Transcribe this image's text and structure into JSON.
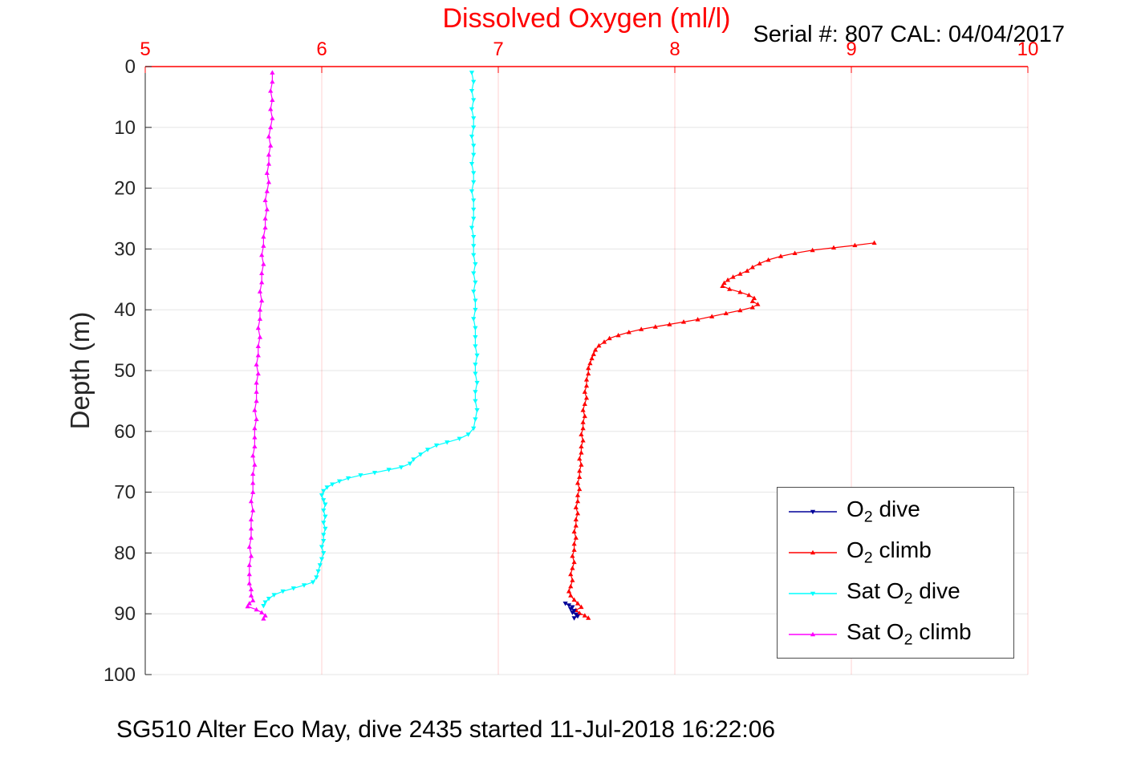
{
  "title": "Dissolved Oxygen (ml/l)",
  "serial_label": "Serial #: 807 CAL: 04/04/2017",
  "caption": "SG510 Alter Eco May, dive 2435 started 11-Jul-2018 16:22:06",
  "ylabel": "Depth (m)",
  "colors": {
    "axis_x": "#ff0000",
    "axis_y": "#262626",
    "grid_x": "rgba(255,0,0,0.18)",
    "grid_y": "rgba(0,0,0,0.10)",
    "o2_dive": "#000099",
    "o2_climb": "#ff0000",
    "sat_o2_dive": "#00ffff",
    "sat_o2_climb": "#ff00ff"
  },
  "chart_data": {
    "type": "line",
    "title": "Dissolved Oxygen (ml/l)",
    "xlabel": "Dissolved Oxygen (ml/l)",
    "ylabel": "Depth (m)",
    "xlim": [
      5,
      10
    ],
    "ylim": [
      0,
      100
    ],
    "x_axis_position": "top",
    "y_axis_reversed": true,
    "grid": true,
    "x_ticks": [
      5,
      6,
      7,
      8,
      9,
      10
    ],
    "y_ticks": [
      0,
      10,
      20,
      30,
      40,
      50,
      60,
      70,
      80,
      90,
      100
    ],
    "legend_position": "right-middle",
    "legend": [
      "O2 dive",
      "O2 climb",
      "Sat O2 dive",
      "Sat O2 climb"
    ],
    "series": [
      {
        "name": "O2 dive",
        "label_pre": "O",
        "label_sub": "2",
        "label_post": " dive",
        "color": "#000099",
        "marker": "v",
        "points": [
          [
            7.38,
            88.3
          ],
          [
            7.4,
            88.6
          ],
          [
            7.42,
            88.9
          ],
          [
            7.41,
            89.2
          ],
          [
            7.43,
            89.5
          ],
          [
            7.42,
            89.8
          ],
          [
            7.44,
            90.1
          ],
          [
            7.45,
            90.4
          ],
          [
            7.43,
            90.7
          ]
        ]
      },
      {
        "name": "O2 climb",
        "label_pre": "O",
        "label_sub": "2",
        "label_post": " climb",
        "color": "#ff0000",
        "marker": "^",
        "points": [
          [
            9.13,
            29.0
          ],
          [
            9.02,
            29.4
          ],
          [
            8.9,
            29.8
          ],
          [
            8.78,
            30.2
          ],
          [
            8.68,
            30.7
          ],
          [
            8.6,
            31.2
          ],
          [
            8.53,
            31.8
          ],
          [
            8.48,
            32.4
          ],
          [
            8.44,
            33.0
          ],
          [
            8.41,
            33.6
          ],
          [
            8.37,
            34.1
          ],
          [
            8.33,
            34.6
          ],
          [
            8.3,
            35.1
          ],
          [
            8.28,
            35.6
          ],
          [
            8.27,
            36.1
          ],
          [
            8.31,
            36.6
          ],
          [
            8.37,
            37.1
          ],
          [
            8.42,
            37.6
          ],
          [
            8.45,
            38.1
          ],
          [
            8.44,
            38.6
          ],
          [
            8.47,
            39.1
          ],
          [
            8.44,
            39.6
          ],
          [
            8.37,
            40.1
          ],
          [
            8.29,
            40.6
          ],
          [
            8.21,
            41.1
          ],
          [
            8.13,
            41.6
          ],
          [
            8.05,
            42.0
          ],
          [
            7.97,
            42.4
          ],
          [
            7.89,
            42.8
          ],
          [
            7.81,
            43.2
          ],
          [
            7.74,
            43.7
          ],
          [
            7.68,
            44.2
          ],
          [
            7.63,
            44.7
          ],
          [
            7.6,
            45.3
          ],
          [
            7.57,
            45.9
          ],
          [
            7.55,
            46.6
          ],
          [
            7.54,
            47.3
          ],
          [
            7.53,
            48.0
          ],
          [
            7.52,
            48.8
          ],
          [
            7.51,
            49.6
          ],
          [
            7.51,
            50.5
          ],
          [
            7.5,
            51.5
          ],
          [
            7.5,
            52.5
          ],
          [
            7.49,
            53.5
          ],
          [
            7.5,
            54.5
          ],
          [
            7.49,
            55.5
          ],
          [
            7.48,
            56.5
          ],
          [
            7.49,
            57.5
          ],
          [
            7.48,
            58.5
          ],
          [
            7.48,
            59.5
          ],
          [
            7.47,
            60.5
          ],
          [
            7.48,
            61.5
          ],
          [
            7.47,
            62.5
          ],
          [
            7.47,
            63.5
          ],
          [
            7.46,
            64.5
          ],
          [
            7.47,
            65.5
          ],
          [
            7.46,
            66.5
          ],
          [
            7.46,
            67.5
          ],
          [
            7.45,
            68.5
          ],
          [
            7.46,
            69.5
          ],
          [
            7.45,
            70.5
          ],
          [
            7.45,
            71.5
          ],
          [
            7.44,
            72.5
          ],
          [
            7.45,
            73.5
          ],
          [
            7.44,
            74.5
          ],
          [
            7.44,
            75.5
          ],
          [
            7.43,
            76.5
          ],
          [
            7.44,
            77.5
          ],
          [
            7.43,
            78.5
          ],
          [
            7.43,
            79.5
          ],
          [
            7.42,
            80.5
          ],
          [
            7.43,
            81.5
          ],
          [
            7.42,
            82.5
          ],
          [
            7.41,
            83.5
          ],
          [
            7.42,
            84.5
          ],
          [
            7.41,
            85.5
          ],
          [
            7.4,
            86.3
          ],
          [
            7.41,
            87.0
          ],
          [
            7.43,
            87.7
          ],
          [
            7.45,
            88.3
          ],
          [
            7.47,
            88.9
          ],
          [
            7.44,
            89.4
          ],
          [
            7.46,
            89.9
          ],
          [
            7.49,
            90.3
          ],
          [
            7.51,
            90.7
          ]
        ]
      },
      {
        "name": "Sat O2 dive",
        "label_pre": "Sat O",
        "label_sub": "2",
        "label_post": " dive",
        "color": "#00ffff",
        "marker": "v",
        "points": [
          [
            6.85,
            1.0
          ],
          [
            6.86,
            2.5
          ],
          [
            6.85,
            4.0
          ],
          [
            6.86,
            5.5
          ],
          [
            6.85,
            7.0
          ],
          [
            6.86,
            8.5
          ],
          [
            6.86,
            10.0
          ],
          [
            6.85,
            11.5
          ],
          [
            6.86,
            13.0
          ],
          [
            6.86,
            14.5
          ],
          [
            6.85,
            16.0
          ],
          [
            6.86,
            17.5
          ],
          [
            6.86,
            19.0
          ],
          [
            6.85,
            20.5
          ],
          [
            6.86,
            22.0
          ],
          [
            6.86,
            23.5
          ],
          [
            6.86,
            25.0
          ],
          [
            6.85,
            26.5
          ],
          [
            6.86,
            28.0
          ],
          [
            6.86,
            29.5
          ],
          [
            6.86,
            31.0
          ],
          [
            6.87,
            32.5
          ],
          [
            6.86,
            34.0
          ],
          [
            6.87,
            35.5
          ],
          [
            6.86,
            37.0
          ],
          [
            6.87,
            38.5
          ],
          [
            6.87,
            40.0
          ],
          [
            6.86,
            41.5
          ],
          [
            6.87,
            43.0
          ],
          [
            6.87,
            44.5
          ],
          [
            6.87,
            46.0
          ],
          [
            6.88,
            47.5
          ],
          [
            6.87,
            49.0
          ],
          [
            6.87,
            50.5
          ],
          [
            6.88,
            52.0
          ],
          [
            6.87,
            53.5
          ],
          [
            6.87,
            55.0
          ],
          [
            6.88,
            56.5
          ],
          [
            6.87,
            58.0
          ],
          [
            6.86,
            59.5
          ],
          [
            6.83,
            60.5
          ],
          [
            6.78,
            61.2
          ],
          [
            6.71,
            61.8
          ],
          [
            6.65,
            62.3
          ],
          [
            6.6,
            63.0
          ],
          [
            6.56,
            63.8
          ],
          [
            6.52,
            64.6
          ],
          [
            6.5,
            65.3
          ],
          [
            6.45,
            65.9
          ],
          [
            6.38,
            66.3
          ],
          [
            6.3,
            66.8
          ],
          [
            6.22,
            67.2
          ],
          [
            6.15,
            67.7
          ],
          [
            6.1,
            68.2
          ],
          [
            6.06,
            68.7
          ],
          [
            6.03,
            69.2
          ],
          [
            6.01,
            69.8
          ],
          [
            6.0,
            70.5
          ],
          [
            6.01,
            71.3
          ],
          [
            6.02,
            72.0
          ],
          [
            6.01,
            73.0
          ],
          [
            6.02,
            74.0
          ],
          [
            6.01,
            75.0
          ],
          [
            6.02,
            76.0
          ],
          [
            6.01,
            77.0
          ],
          [
            6.01,
            78.0
          ],
          [
            6.0,
            79.0
          ],
          [
            6.01,
            80.0
          ],
          [
            6.0,
            81.0
          ],
          [
            5.99,
            82.0
          ],
          [
            5.98,
            83.0
          ],
          [
            5.97,
            84.0
          ],
          [
            5.95,
            84.8
          ],
          [
            5.9,
            85.3
          ],
          [
            5.84,
            85.8
          ],
          [
            5.78,
            86.3
          ],
          [
            5.73,
            86.9
          ],
          [
            5.7,
            87.5
          ],
          [
            5.68,
            88.1
          ],
          [
            5.67,
            88.7
          ]
        ]
      },
      {
        "name": "Sat O2 climb",
        "label_pre": "Sat O",
        "label_sub": "2",
        "label_post": " climb",
        "color": "#ff00ff",
        "marker": "^",
        "points": [
          [
            5.72,
            1.0
          ],
          [
            5.72,
            2.5
          ],
          [
            5.71,
            4.0
          ],
          [
            5.72,
            5.5
          ],
          [
            5.71,
            7.0
          ],
          [
            5.72,
            8.5
          ],
          [
            5.71,
            10.0
          ],
          [
            5.7,
            11.5
          ],
          [
            5.71,
            13.0
          ],
          [
            5.7,
            14.5
          ],
          [
            5.7,
            16.0
          ],
          [
            5.69,
            17.5
          ],
          [
            5.7,
            19.0
          ],
          [
            5.69,
            20.5
          ],
          [
            5.68,
            22.0
          ],
          [
            5.69,
            23.5
          ],
          [
            5.68,
            25.0
          ],
          [
            5.68,
            26.5
          ],
          [
            5.67,
            28.0
          ],
          [
            5.67,
            29.5
          ],
          [
            5.66,
            31.0
          ],
          [
            5.67,
            32.5
          ],
          [
            5.66,
            34.0
          ],
          [
            5.66,
            35.5
          ],
          [
            5.65,
            37.0
          ],
          [
            5.66,
            38.5
          ],
          [
            5.65,
            40.0
          ],
          [
            5.65,
            41.5
          ],
          [
            5.64,
            43.0
          ],
          [
            5.65,
            44.5
          ],
          [
            5.64,
            46.0
          ],
          [
            5.64,
            47.5
          ],
          [
            5.63,
            49.0
          ],
          [
            5.64,
            50.5
          ],
          [
            5.63,
            52.0
          ],
          [
            5.63,
            53.5
          ],
          [
            5.63,
            55.0
          ],
          [
            5.62,
            56.5
          ],
          [
            5.63,
            58.0
          ],
          [
            5.62,
            59.5
          ],
          [
            5.62,
            61.0
          ],
          [
            5.62,
            62.5
          ],
          [
            5.61,
            64.0
          ],
          [
            5.62,
            65.5
          ],
          [
            5.61,
            67.0
          ],
          [
            5.61,
            68.5
          ],
          [
            5.61,
            70.0
          ],
          [
            5.6,
            71.5
          ],
          [
            5.61,
            73.0
          ],
          [
            5.6,
            74.5
          ],
          [
            5.6,
            76.0
          ],
          [
            5.6,
            77.5
          ],
          [
            5.59,
            79.0
          ],
          [
            5.6,
            80.5
          ],
          [
            5.59,
            82.0
          ],
          [
            5.59,
            83.5
          ],
          [
            5.59,
            85.0
          ],
          [
            5.6,
            86.0
          ],
          [
            5.6,
            87.0
          ],
          [
            5.61,
            87.8
          ],
          [
            5.59,
            88.3
          ],
          [
            5.58,
            88.8
          ],
          [
            5.63,
            89.3
          ],
          [
            5.66,
            89.8
          ],
          [
            5.68,
            90.3
          ],
          [
            5.67,
            90.8
          ]
        ]
      }
    ]
  }
}
